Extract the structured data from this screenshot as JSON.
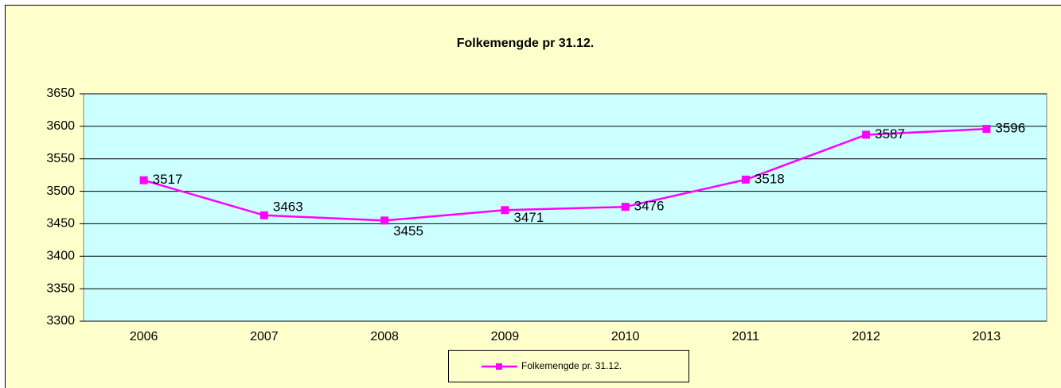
{
  "chart_data": {
    "type": "line",
    "title": "Folkemengde pr 31.12.",
    "categories": [
      "2006",
      "2007",
      "2008",
      "2009",
      "2010",
      "2011",
      "2012",
      "2013"
    ],
    "series": [
      {
        "name": "Folkemengde pr. 31.12.",
        "color": "#ff00ff",
        "values": [
          3517,
          3463,
          3455,
          3471,
          3476,
          3518,
          3587,
          3596
        ]
      }
    ],
    "ylim": [
      3300,
      3650
    ],
    "yticks": [
      3300,
      3350,
      3400,
      3450,
      3500,
      3550,
      3600,
      3650
    ],
    "grid": true,
    "legend": "bottom"
  }
}
